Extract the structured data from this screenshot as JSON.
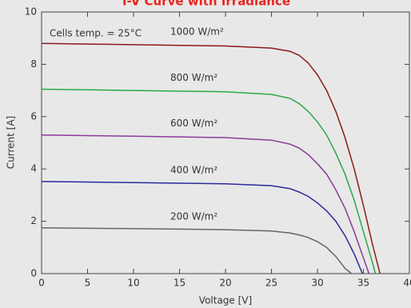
{
  "chart_data": {
    "type": "line",
    "title": "I-V Curve with Irradiance",
    "annotation": "Cells temp. = 25°C",
    "xlabel": "Voltage [V]",
    "ylabel": "Current [A]",
    "xlim": [
      0,
      40
    ],
    "ylim": [
      0,
      10
    ],
    "xticks": [
      0,
      5,
      10,
      15,
      20,
      25,
      30,
      35,
      40
    ],
    "yticks": [
      0,
      2,
      4,
      6,
      8,
      10
    ],
    "series": [
      {
        "name": "1000 W/m²",
        "color": "#8b1a1a",
        "x": [
          0,
          10,
          20,
          25,
          27,
          28,
          29,
          30,
          31,
          32,
          33,
          34,
          35,
          36,
          36.8
        ],
        "values": [
          8.8,
          8.75,
          8.7,
          8.62,
          8.5,
          8.35,
          8.05,
          7.6,
          7.0,
          6.2,
          5.2,
          4.0,
          2.6,
          1.1,
          0
        ]
      },
      {
        "name": "800 W/m²",
        "color": "#2aa84a",
        "x": [
          0,
          10,
          20,
          25,
          27,
          28,
          29,
          30,
          31,
          32,
          33,
          34,
          35,
          36,
          36.3
        ],
        "values": [
          7.05,
          7.0,
          6.95,
          6.85,
          6.7,
          6.5,
          6.2,
          5.8,
          5.3,
          4.6,
          3.8,
          2.8,
          1.6,
          0.4,
          0
        ]
      },
      {
        "name": "600 W/m²",
        "color": "#8a3a9a",
        "x": [
          0,
          10,
          20,
          25,
          27,
          28,
          29,
          30,
          31,
          32,
          33,
          34,
          35,
          35.6
        ],
        "values": [
          5.3,
          5.25,
          5.2,
          5.1,
          4.95,
          4.8,
          4.55,
          4.2,
          3.8,
          3.2,
          2.5,
          1.6,
          0.6,
          0
        ]
      },
      {
        "name": "400 W/m²",
        "color": "#2a2a9a",
        "x": [
          0,
          10,
          20,
          25,
          27,
          28,
          29,
          30,
          31,
          32,
          33,
          34,
          34.9
        ],
        "values": [
          3.52,
          3.48,
          3.43,
          3.36,
          3.25,
          3.12,
          2.95,
          2.7,
          2.4,
          2.0,
          1.45,
          0.75,
          0
        ]
      },
      {
        "name": "200 W/m²",
        "color": "#666666",
        "x": [
          0,
          10,
          20,
          25,
          27,
          28,
          29,
          30,
          31,
          32,
          33,
          33.7
        ],
        "values": [
          1.75,
          1.72,
          1.68,
          1.63,
          1.55,
          1.48,
          1.38,
          1.22,
          1.0,
          0.65,
          0.2,
          0
        ]
      }
    ]
  }
}
